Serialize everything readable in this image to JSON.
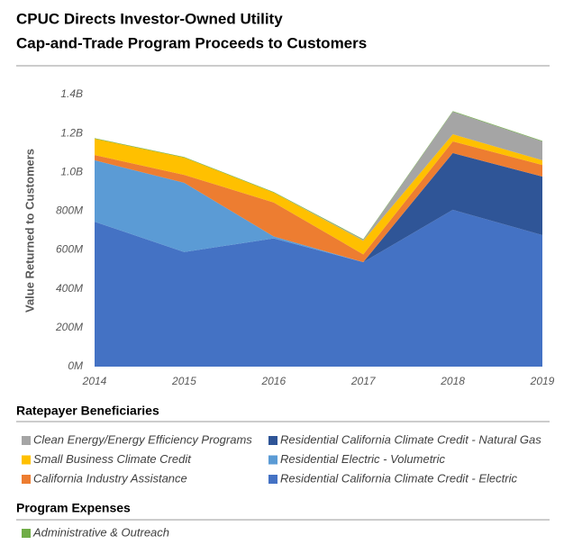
{
  "chart_data": {
    "type": "stacked_area",
    "title": [
      "CPUC Directs Investor-Owned Utility",
      "Cap-and-Trade Program Proceeds to Customers"
    ],
    "y_label": "Value Returned to Customers",
    "categories": [
      "2014",
      "2015",
      "2016",
      "2017",
      "2018",
      "2019"
    ],
    "series": [
      {
        "name": "Residential California Climate Credit - Electric",
        "color": "#4472c4",
        "values": [
          746000000,
          590000000,
          660000000,
          538000000,
          807000000,
          677000000
        ]
      },
      {
        "name": "Residential California Climate Credit - Natural Gas",
        "color": "#2f5597",
        "values": [
          0,
          0,
          0,
          0,
          292000000,
          301000000
        ]
      },
      {
        "name": "Residential Electric - Volumetric",
        "color": "#5b9bd5",
        "values": [
          316000000,
          356000000,
          10000000,
          0,
          0,
          0
        ]
      },
      {
        "name": "California Industry Assistance",
        "color": "#ed7d31",
        "values": [
          27000000,
          41000000,
          175000000,
          40000000,
          60000000,
          60000000
        ]
      },
      {
        "name": "Small Business Climate Credit",
        "color": "#ffc000",
        "values": [
          84000000,
          89000000,
          51000000,
          70000000,
          37000000,
          24000000
        ]
      },
      {
        "name": "Clean Energy/Energy Efficiency Programs",
        "color": "#a5a5a5",
        "values": [
          0,
          0,
          0,
          5000000,
          116000000,
          97000000
        ]
      },
      {
        "name": "Administrative & Outreach",
        "color": "#70ad47",
        "values": [
          3000000,
          3000000,
          3000000,
          3000000,
          3000000,
          3000000
        ]
      }
    ],
    "legend_groups": [
      "Ratepayer Beneficiaries",
      "Program Expenses"
    ],
    "ylim": [
      0,
      1400000000
    ],
    "yticks": [
      {
        "value": 0,
        "label": "0M"
      },
      {
        "value": 200000000,
        "label": "200M"
      },
      {
        "value": 400000000,
        "label": "400M"
      },
      {
        "value": 600000000,
        "label": "600M"
      },
      {
        "value": 800000000,
        "label": "800M"
      },
      {
        "value": 1000000000,
        "label": "1.0B"
      },
      {
        "value": 1200000000,
        "label": "1.2B"
      },
      {
        "value": 1400000000,
        "label": "1.4B"
      }
    ],
    "grid": false
  }
}
